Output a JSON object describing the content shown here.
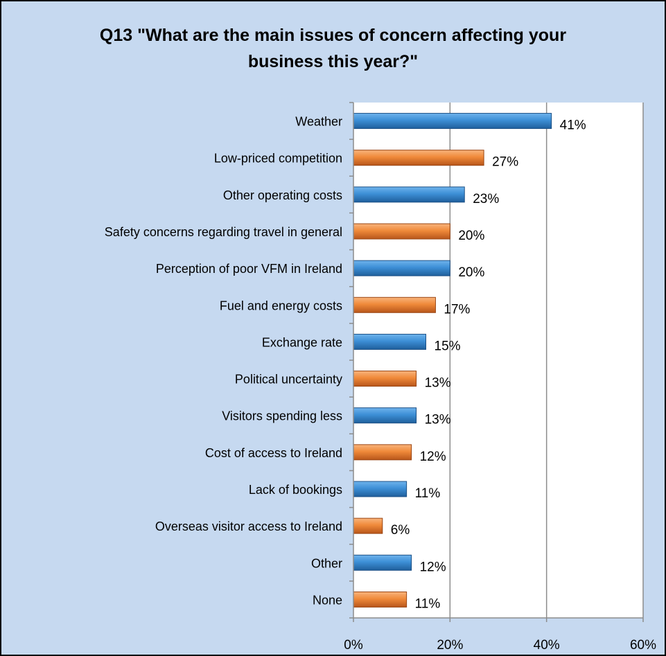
{
  "chart_data": {
    "type": "bar",
    "orientation": "horizontal",
    "title_lines": [
      "Q13 \"What are the main issues of concern affecting your",
      "business this year?\""
    ],
    "categories": [
      "Weather",
      "Low-priced competition",
      "Other operating costs",
      "Safety concerns regarding travel in general",
      "Perception of poor VFM in Ireland",
      "Fuel and energy costs",
      "Exchange rate",
      "Political uncertainty",
      "Visitors spending less",
      "Cost of access to Ireland",
      "Lack of bookings",
      "Overseas visitor access to Ireland",
      "Other",
      "None"
    ],
    "values": [
      41,
      27,
      23,
      20,
      20,
      17,
      15,
      13,
      13,
      12,
      11,
      6,
      12,
      11
    ],
    "value_labels": [
      "41%",
      "27%",
      "23%",
      "20%",
      "20%",
      "17%",
      "15%",
      "13%",
      "13%",
      "12%",
      "11%",
      "6%",
      "12%",
      "11%"
    ],
    "xlim": [
      0,
      60
    ],
    "x_ticks": [
      0,
      20,
      40,
      60
    ],
    "x_tick_labels": [
      "0%",
      "20%",
      "40%",
      "60%"
    ],
    "grid": "vertical",
    "colors": {
      "series_a": "#3d8fd6",
      "series_b": "#f08a3a",
      "background": "#c6d9f0",
      "plot_area": "#ffffff"
    },
    "color_pattern": [
      "series_a",
      "series_b"
    ]
  }
}
